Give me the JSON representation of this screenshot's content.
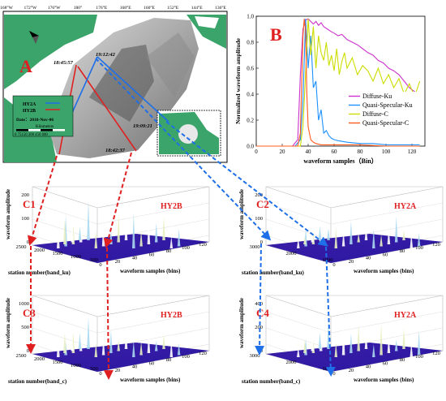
{
  "map": {
    "label": "A",
    "top_ticks": [
      "168°W",
      "172°W",
      "176°W",
      "180°",
      "176°E",
      "168°E",
      "160°E",
      "152°E",
      "144°E",
      "136°E"
    ],
    "times": [
      "18:45:57",
      "19:12:42",
      "19:09:21",
      "18:42:37"
    ],
    "legend": {
      "sat1": "HY2A",
      "sat2": "HY2B",
      "date": "Date：2018-Nov-06",
      "scale_unit": "Kilometers",
      "scale_ticks": "0 75150   300   450   600"
    },
    "colors": {
      "land": "#3aa46a",
      "ocean": "#2e8b3e",
      "hy2a_line": "#1e6fe8",
      "hy2b_line": "#e02020"
    }
  },
  "chart_b": {
    "label": "B",
    "chart_data": {
      "type": "line",
      "xlabel": "waveform samples（Bin）",
      "ylabel": "Normalized waveform amplitude",
      "xlim": [
        0,
        130
      ],
      "ylim": [
        0,
        1.0
      ],
      "xticks": [
        0,
        20,
        40,
        60,
        80,
        100,
        120
      ],
      "yticks": [
        0.0,
        0.2,
        0.4,
        0.6,
        0.8,
        1.0
      ],
      "series": [
        {
          "name": "Diffuse-Ku",
          "color": "#cc33cc",
          "x": [
            0,
            28,
            32,
            34,
            36,
            38,
            40,
            42,
            44,
            46,
            48,
            50,
            52,
            55,
            58,
            60,
            63,
            66,
            70,
            74,
            78,
            82,
            86,
            90,
            94,
            98,
            102,
            106,
            110,
            114,
            118,
            122,
            126
          ],
          "y": [
            0,
            0,
            0.05,
            0.55,
            0.9,
            0.97,
            0.98,
            0.96,
            0.94,
            0.96,
            0.93,
            0.95,
            0.92,
            0.9,
            0.88,
            0.87,
            0.85,
            0.86,
            0.82,
            0.8,
            0.78,
            0.75,
            0.72,
            0.7,
            0.66,
            0.64,
            0.6,
            0.58,
            0.55,
            0.5,
            0.45,
            0.42,
            0.33
          ]
        },
        {
          "name": "Quasi-Specular-Ku",
          "color": "#1e90ff",
          "x": [
            0,
            30,
            34,
            36,
            38,
            40,
            42,
            44,
            46,
            48,
            50,
            52,
            54,
            56,
            58,
            60,
            64,
            70,
            80,
            90,
            100,
            110,
            120,
            126
          ],
          "y": [
            0,
            0,
            0.05,
            0.35,
            0.98,
            0.6,
            0.85,
            0.45,
            0.5,
            0.2,
            0.28,
            0.1,
            0.12,
            0.08,
            0.06,
            0.05,
            0.04,
            0.03,
            0.02,
            0.02,
            0.01,
            0.01,
            0.01,
            0.01
          ]
        },
        {
          "name": "Diffuse-C",
          "color": "#ccdd00",
          "x": [
            0,
            34,
            36,
            38,
            40,
            42,
            44,
            46,
            48,
            50,
            52,
            54,
            56,
            58,
            60,
            62,
            64,
            66,
            68,
            70,
            74,
            78,
            82,
            86,
            90,
            94,
            98,
            102,
            106,
            110,
            114,
            118,
            122,
            126
          ],
          "y": [
            0,
            0,
            0.15,
            0.55,
            0.98,
            0.7,
            0.92,
            0.6,
            0.85,
            0.72,
            0.66,
            0.8,
            0.62,
            0.7,
            0.58,
            0.75,
            0.55,
            0.65,
            0.72,
            0.6,
            0.68,
            0.55,
            0.62,
            0.58,
            0.5,
            0.6,
            0.48,
            0.55,
            0.45,
            0.52,
            0.4,
            0.48,
            0.38,
            0.5
          ]
        },
        {
          "name": "Quasi-Specular-C",
          "color": "#ff5a1f",
          "x": [
            0,
            32,
            34,
            36,
            37,
            38,
            39,
            40,
            42,
            44,
            46,
            50,
            60,
            80,
            100,
            126
          ],
          "y": [
            0,
            0,
            0.1,
            0.85,
            0.98,
            0.9,
            0.4,
            0.15,
            0.05,
            0.03,
            0.02,
            0.01,
            0.01,
            0.01,
            0.0,
            0.0
          ]
        }
      ]
    }
  },
  "panels": [
    {
      "id": "C1",
      "sat": "HY2B",
      "zlabel": "waveform amplitude",
      "zticks": [
        "200",
        "100",
        "0"
      ],
      "station_label": "station number(band_ku)",
      "station_ticks": [
        "2500",
        "2000",
        "1500",
        "1000",
        "500"
      ],
      "sample_label": "waveform samples (bins)",
      "sample_ticks": [
        "0",
        "20",
        "40",
        "60",
        "80",
        "100",
        "120"
      ]
    },
    {
      "id": "C2",
      "sat": "HY2A",
      "zlabel": "waveform amplitude",
      "zticks": [
        "200",
        "100",
        "0"
      ],
      "station_label": "station number(band_ku)",
      "station_ticks": [
        "3000",
        "2000",
        "1000"
      ],
      "sample_label": "waveform samples (bins)",
      "sample_ticks": [
        "0",
        "20",
        "40",
        "60",
        "80",
        "100",
        "120"
      ]
    },
    {
      "id": "C3",
      "sat": "HY2B",
      "zlabel": "waveform amplitude",
      "zticks": [
        "1000",
        "500",
        "0"
      ],
      "station_label": "station number(band_c)",
      "station_ticks": [
        "2500",
        "2000",
        "1500",
        "1000",
        "500"
      ],
      "sample_label": "waveform samples (bins)",
      "sample_ticks": [
        "0",
        "20",
        "40",
        "60",
        "80",
        "100",
        "120"
      ]
    },
    {
      "id": "C4",
      "sat": "HY2A",
      "zlabel": "waveform amplitude",
      "zticks": [
        "400",
        "200",
        "0"
      ],
      "station_label": "station number(band_c)",
      "station_ticks": [
        "3000",
        "2000",
        "1000"
      ],
      "sample_label": "waveform samples (bins)",
      "sample_ticks": [
        "0",
        "20",
        "40",
        "60",
        "80",
        "100",
        "120"
      ]
    }
  ]
}
